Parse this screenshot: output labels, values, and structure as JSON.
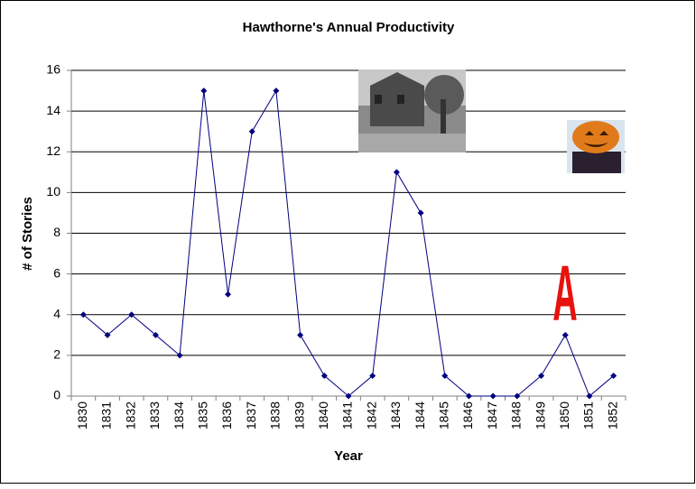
{
  "chart_data": {
    "type": "line",
    "title": "Hawthorne's Annual Productivity",
    "x_label": "Year",
    "y_label": "# of Stories",
    "categories": [
      "1830",
      "1831",
      "1832",
      "1833",
      "1834",
      "1835",
      "1836",
      "1837",
      "1838",
      "1839",
      "1840",
      "1841",
      "1842",
      "1843",
      "1844",
      "1845",
      "1846",
      "1847",
      "1848",
      "1849",
      "1850",
      "1851",
      "1852"
    ],
    "values": [
      4,
      3,
      4,
      3,
      2,
      15,
      5,
      13,
      15,
      3,
      1,
      0,
      1,
      11,
      9,
      1,
      0,
      0,
      0,
      1,
      3,
      0,
      1
    ],
    "color": "#000080",
    "ylim": [
      0,
      16
    ],
    "yticks": [
      0,
      2,
      4,
      6,
      8,
      10,
      12,
      14,
      16
    ],
    "grid": true,
    "annotation": "A"
  }
}
